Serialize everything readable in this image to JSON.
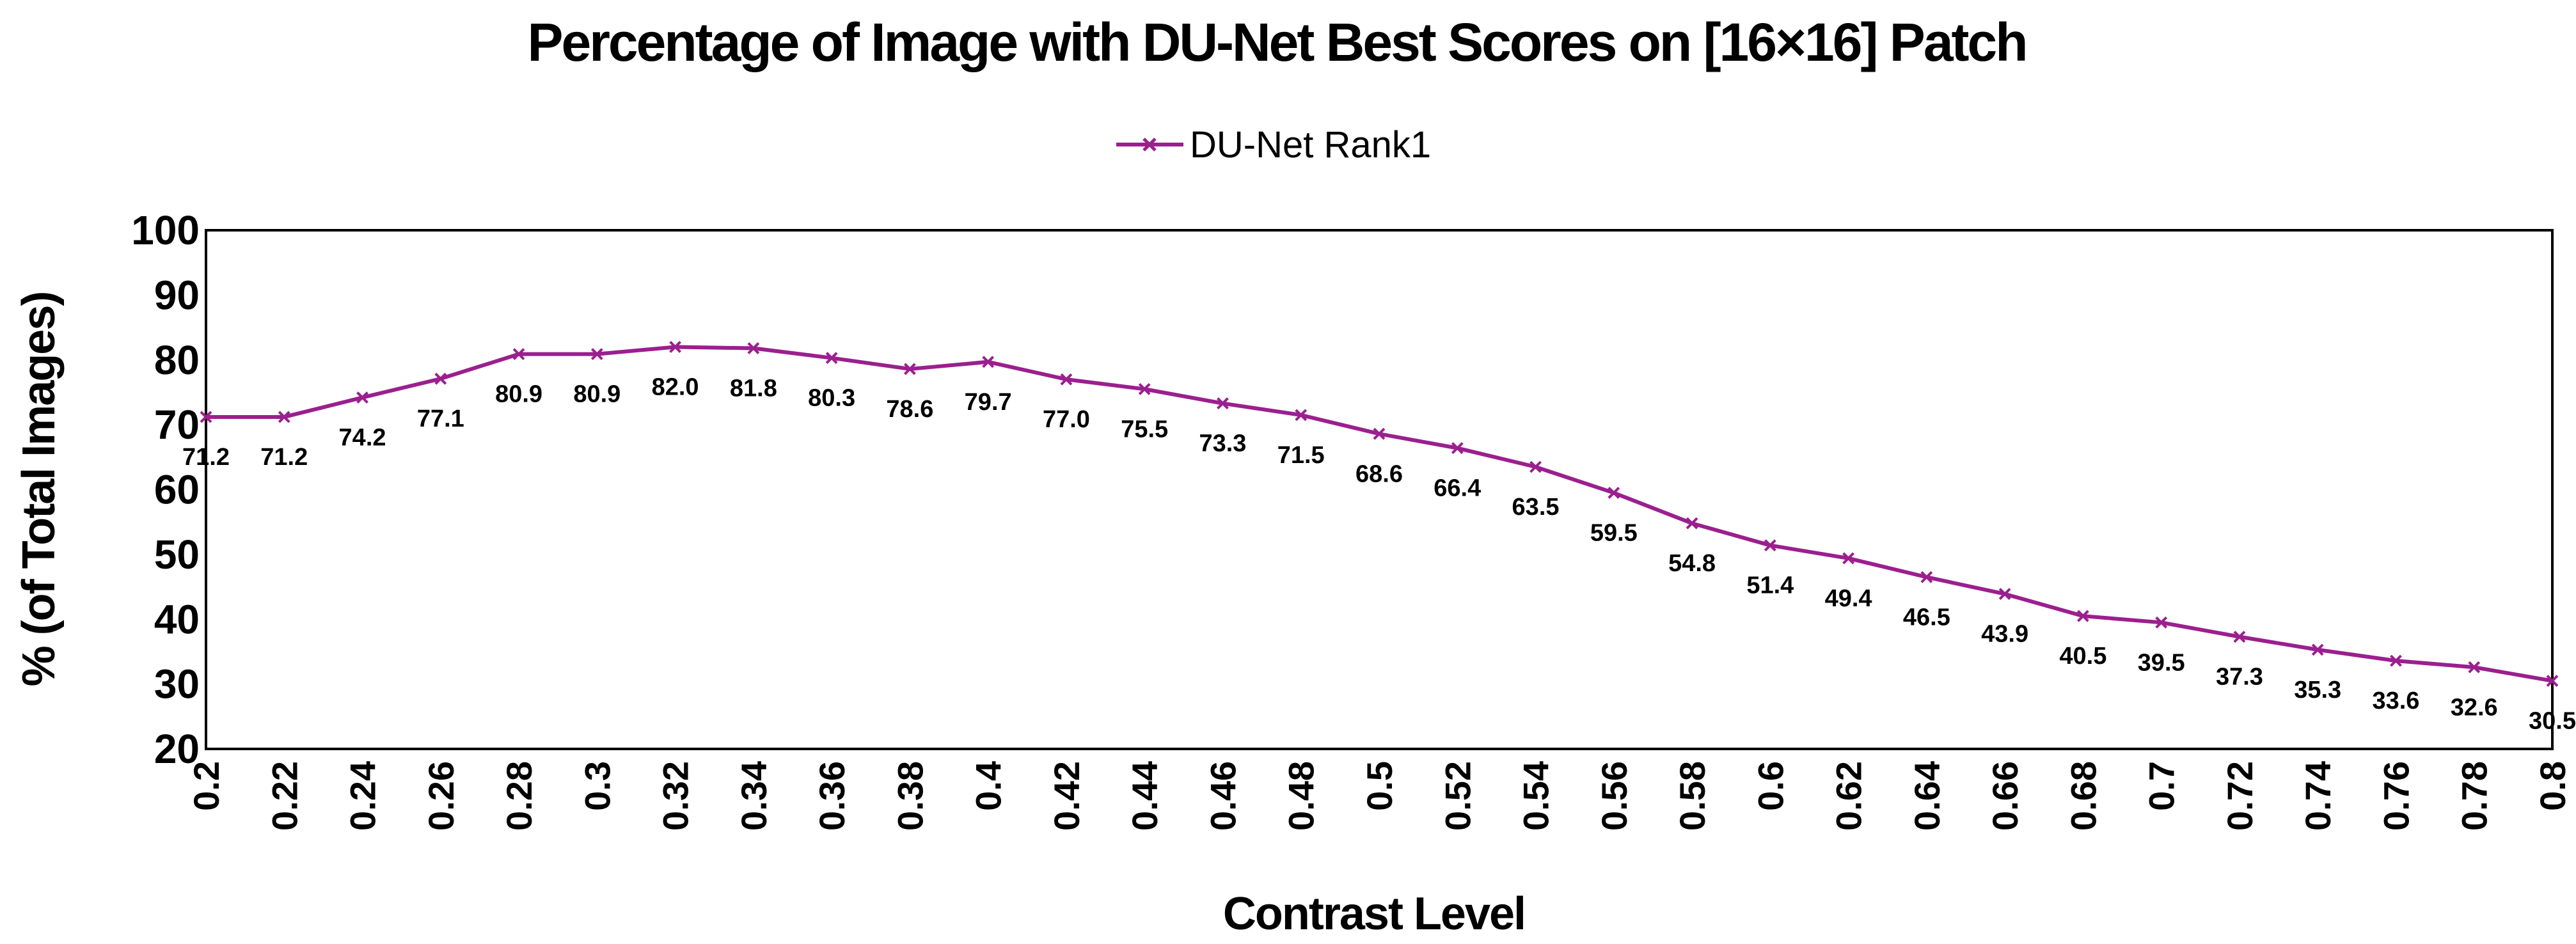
{
  "chart_data": {
    "type": "line",
    "title": "Percentage of Image with DU-Net Best Scores on [16×16]  Patch",
    "xlabel": "Contrast Level",
    "ylabel": "% (of Total Images)",
    "ylim": [
      20,
      100
    ],
    "yticks": [
      "20",
      "30",
      "40",
      "50",
      "60",
      "70",
      "80",
      "90",
      "100"
    ],
    "grid": false,
    "legend_position": "top-center",
    "categories": [
      "0.2",
      "0.22",
      "0.24",
      "0.26",
      "0.28",
      "0.3",
      "0.32",
      "0.34",
      "0.36",
      "0.38",
      "0.4",
      "0.42",
      "0.44",
      "0.46",
      "0.48",
      "0.5",
      "0.52",
      "0.54",
      "0.56",
      "0.58",
      "0.6",
      "0.62",
      "0.64",
      "0.66",
      "0.68",
      "0.7",
      "0.72",
      "0.74",
      "0.76",
      "0.78",
      "0.8"
    ],
    "series": [
      {
        "name": "DU-Net Rank1",
        "color": "#9b1f8e",
        "marker": "x",
        "values": [
          71.2,
          71.2,
          74.2,
          77.1,
          80.9,
          80.9,
          82.0,
          81.8,
          80.3,
          78.6,
          79.7,
          77.0,
          75.5,
          73.3,
          71.5,
          68.6,
          66.4,
          63.5,
          59.5,
          54.8,
          51.4,
          49.4,
          46.5,
          43.9,
          40.5,
          39.5,
          37.3,
          35.3,
          33.6,
          32.6,
          30.5
        ],
        "labels": [
          "71.2",
          "71.2",
          "74.2",
          "77.1",
          "80.9",
          "80.9",
          "82.0",
          "81.8",
          "80.3",
          "78.6",
          "79.7",
          "77.0",
          "75.5",
          "73.3",
          "71.5",
          "68.6",
          "66.4",
          "63.5",
          "59.5",
          "54.8",
          "51.4",
          "49.4",
          "46.5",
          "43.9",
          "40.5",
          "39.5",
          "37.3",
          "35.3",
          "33.6",
          "32.6",
          "30.5"
        ]
      }
    ]
  }
}
